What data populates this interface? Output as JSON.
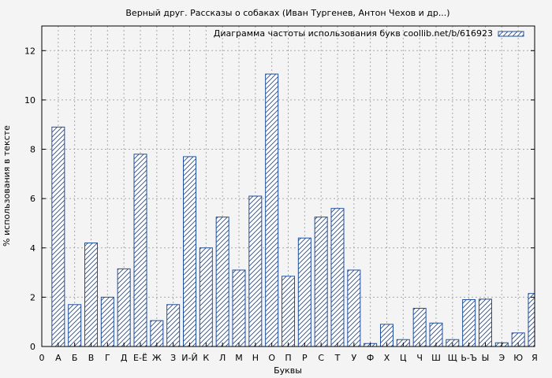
{
  "chart_data": {
    "type": "bar",
    "title": "Верный друг. Рассказы о собаках (Иван Тургенев, Антон Чехов и др...)",
    "xlabel": "Буквы",
    "ylabel": "% использования в тексте",
    "ylim": [
      0,
      13
    ],
    "yticks": [
      0,
      2,
      4,
      6,
      8,
      10,
      12
    ],
    "grid": true,
    "legend": {
      "label": "Диаграмма частоты использования букв coollib.net/b/616923",
      "placement": "top-right"
    },
    "x_first_tick": "0",
    "categories": [
      "А",
      "Б",
      "В",
      "Г",
      "Д",
      "Е-Ё",
      "Ж",
      "З",
      "И-Й",
      "К",
      "Л",
      "М",
      "Н",
      "О",
      "П",
      "Р",
      "С",
      "Т",
      "У",
      "Ф",
      "Х",
      "Ц",
      "Ч",
      "Ш",
      "Щ",
      "Ь-Ъ",
      "Ы",
      "Э",
      "Ю",
      "Я"
    ],
    "values": [
      8.9,
      1.7,
      4.2,
      2.0,
      3.15,
      7.8,
      1.05,
      1.7,
      7.7,
      4.0,
      5.25,
      3.1,
      6.1,
      11.05,
      2.85,
      4.4,
      5.25,
      5.6,
      3.1,
      0.12,
      0.9,
      0.28,
      1.55,
      0.95,
      0.28,
      1.9,
      1.92,
      0.15,
      0.55,
      2.15
    ],
    "colors": {
      "bar_stroke": "#1f4fa0",
      "hatch": "#1f4fa0",
      "plot_bg": "#f4f4f4"
    }
  }
}
